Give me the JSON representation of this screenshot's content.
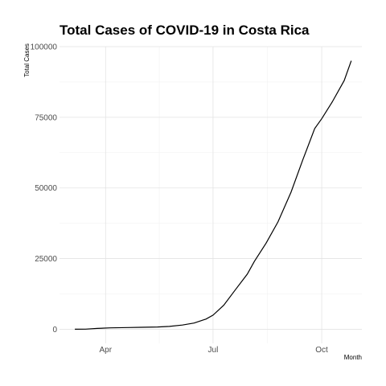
{
  "chart_data": {
    "type": "line",
    "title": "Total Cases of COVID-19 in Costa Rica",
    "xlabel": "Month",
    "ylabel": "Total Cases",
    "x_ticks": [
      {
        "label": "Apr",
        "value": "2020-04-01"
      },
      {
        "label": "Jul",
        "value": "2020-07-01"
      },
      {
        "label": "Oct",
        "value": "2020-10-01"
      }
    ],
    "y_ticks": [
      0,
      25000,
      50000,
      75000,
      100000
    ],
    "xlim": [
      "2020-02-22",
      "2020-11-04"
    ],
    "ylim": [
      -5000,
      100000
    ],
    "grid": true,
    "series": [
      {
        "color": "#000000",
        "x": [
          "2020-03-06",
          "2020-03-15",
          "2020-03-25",
          "2020-04-05",
          "2020-04-20",
          "2020-05-01",
          "2020-05-15",
          "2020-05-25",
          "2020-06-05",
          "2020-06-15",
          "2020-06-25",
          "2020-07-01",
          "2020-07-10",
          "2020-07-20",
          "2020-07-30",
          "2020-08-05",
          "2020-08-15",
          "2020-08-25",
          "2020-09-05",
          "2020-09-15",
          "2020-09-25",
          "2020-10-01",
          "2020-10-10",
          "2020-10-20",
          "2020-10-26"
        ],
        "y": [
          0,
          50,
          300,
          500,
          600,
          700,
          800,
          1000,
          1500,
          2200,
          3600,
          5000,
          8500,
          14000,
          19500,
          24000,
          30500,
          38000,
          48500,
          60000,
          71000,
          74500,
          80500,
          88000,
          95000
        ]
      }
    ]
  }
}
